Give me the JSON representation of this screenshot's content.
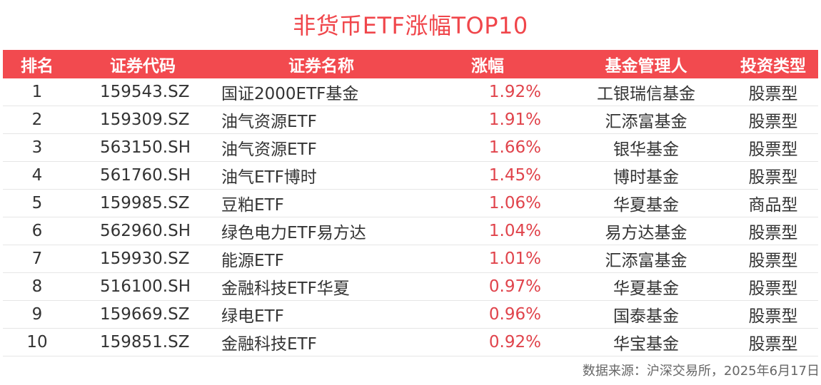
{
  "chart_data": {
    "type": "table",
    "title": "非货币ETF涨幅TOP10",
    "columns": [
      "排名",
      "证券代码",
      "证券名称",
      "涨幅",
      "基金管理人",
      "投资类型"
    ],
    "rows": [
      {
        "rank": "1",
        "code": "159543.SZ",
        "name": "国证2000ETF基金",
        "change": "1.92%",
        "manager": "工银瑞信基金",
        "type": "股票型"
      },
      {
        "rank": "2",
        "code": "159309.SZ",
        "name": "油气资源ETF",
        "change": "1.91%",
        "manager": "汇添富基金",
        "type": "股票型"
      },
      {
        "rank": "3",
        "code": "563150.SH",
        "name": "油气资源ETF",
        "change": "1.66%",
        "manager": "银华基金",
        "type": "股票型"
      },
      {
        "rank": "4",
        "code": "561760.SH",
        "name": "油气ETF博时",
        "change": "1.45%",
        "manager": "博时基金",
        "type": "股票型"
      },
      {
        "rank": "5",
        "code": "159985.SZ",
        "name": "豆粕ETF",
        "change": "1.06%",
        "manager": "华夏基金",
        "type": "商品型"
      },
      {
        "rank": "6",
        "code": "562960.SH",
        "name": "绿色电力ETF易方达",
        "change": "1.04%",
        "manager": "易方达基金",
        "type": "股票型"
      },
      {
        "rank": "7",
        "code": "159930.SZ",
        "name": "能源ETF",
        "change": "1.01%",
        "manager": "汇添富基金",
        "type": "股票型"
      },
      {
        "rank": "8",
        "code": "516100.SH",
        "name": "金融科技ETF华夏",
        "change": "0.97%",
        "manager": "华夏基金",
        "type": "股票型"
      },
      {
        "rank": "9",
        "code": "159669.SZ",
        "name": "绿电ETF",
        "change": "0.96%",
        "manager": "国泰基金",
        "type": "股票型"
      },
      {
        "rank": "10",
        "code": "159851.SZ",
        "name": "金融科技ETF",
        "change": "0.92%",
        "manager": "华宝基金",
        "type": "股票型"
      }
    ],
    "header_color": "#f24a4f",
    "title_color": "#f0464b",
    "change_color": "#e0434b"
  },
  "source_note": "数据来源：沪深交易所，2025年6月17日"
}
